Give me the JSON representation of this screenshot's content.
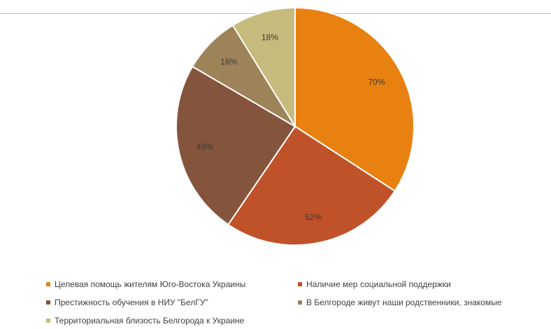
{
  "chart_data": {
    "type": "pie",
    "title": "",
    "slices": [
      {
        "label": "Целевая помощь жителям Юго-Востока Украины",
        "value": 70,
        "display": "70%",
        "color": "#E98110"
      },
      {
        "label": "Наличие мер социальной поддержки",
        "value": 52,
        "display": "52%",
        "color": "#C0522A"
      },
      {
        "label": "Престижность обучения в НИУ \"БелГУ\"",
        "value": 49,
        "display": "49%",
        "color": "#85543D"
      },
      {
        "label": "В Белгороде живут наши родственники, знакомые",
        "value": 16,
        "display": "16%",
        "color": "#9E8258"
      },
      {
        "label": "Территориальная близость Белгорода к Украине",
        "value": 18,
        "display": "18%",
        "color": "#C6BB7D"
      }
    ],
    "legend_position": "bottom"
  }
}
